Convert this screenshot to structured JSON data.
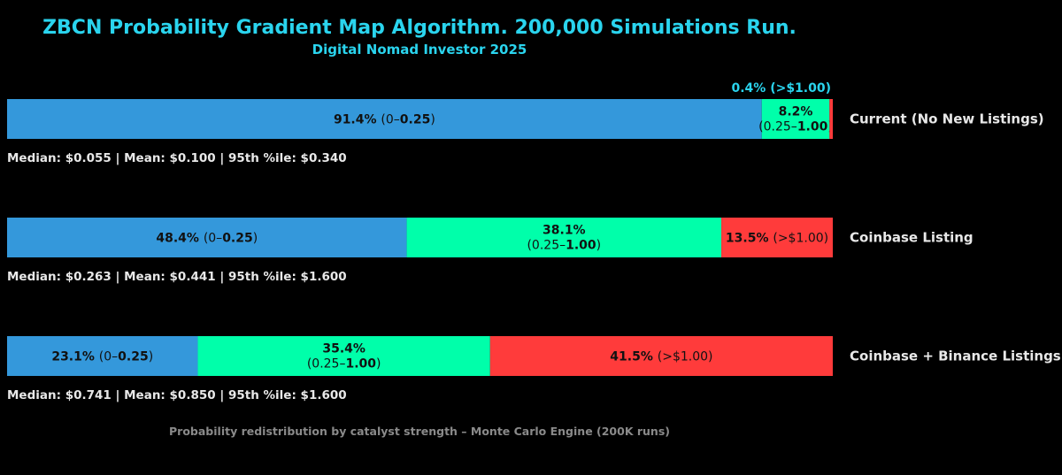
{
  "chart_data": {
    "type": "bar",
    "orientation": "horizontal-stacked-100",
    "title": "ZBCN Probability Gradient Map Algorithm. 200,000 Simulations Run.",
    "subtitle": "Digital Nomad Investor 2025",
    "footer": "Probability redistribution by catalyst strength – Monte Carlo Engine (200K runs)",
    "xlim": [
      0,
      100
    ],
    "grid": false,
    "legend": "none",
    "categories": [
      "Current (No New Listings)",
      "Coinbase Listing",
      "Coinbase + Binance Listings"
    ],
    "bins": [
      {
        "range_prefix": "0–",
        "range_bold": "0.25",
        "range_suffix": "",
        "color": "#3498db"
      },
      {
        "range_prefix": "0.25–",
        "range_bold": "1.00",
        "range_suffix": "",
        "color": "#00ffaa"
      },
      {
        "range_prefix": ">$1.00",
        "range_bold": "",
        "range_suffix": "",
        "color": "#ff3b3b"
      }
    ],
    "rows": [
      {
        "label": "Current (No New Listings)",
        "values": [
          91.4,
          8.2,
          0.4
        ],
        "value_labels": [
          "91.4%",
          "8.2%",
          "0.4%"
        ],
        "stats": "Median: $0.055 | Mean: $0.100 | 95th %ile: $0.340"
      },
      {
        "label": "Coinbase Listing",
        "values": [
          48.4,
          38.1,
          13.5
        ],
        "value_labels": [
          "48.4%",
          "38.1%",
          "13.5%"
        ],
        "stats": "Median: $0.263 | Mean: $0.441 | 95th %ile: $1.600"
      },
      {
        "label": "Coinbase + Binance Listings",
        "values": [
          23.1,
          35.4,
          41.5
        ],
        "value_labels": [
          "23.1%",
          "35.4%",
          "41.5%"
        ],
        "stats": "Median: $0.741 | Mean: $0.850 | 95th %ile: $1.600"
      }
    ]
  },
  "colors": {
    "background": "#000000",
    "title": "#2ad4ee",
    "subtitle": "#2ad4ee",
    "outside_label": "#2ad4ee",
    "text": "#e8e8e8",
    "segment_text": "#111111",
    "footer": "#8a8a8a"
  }
}
